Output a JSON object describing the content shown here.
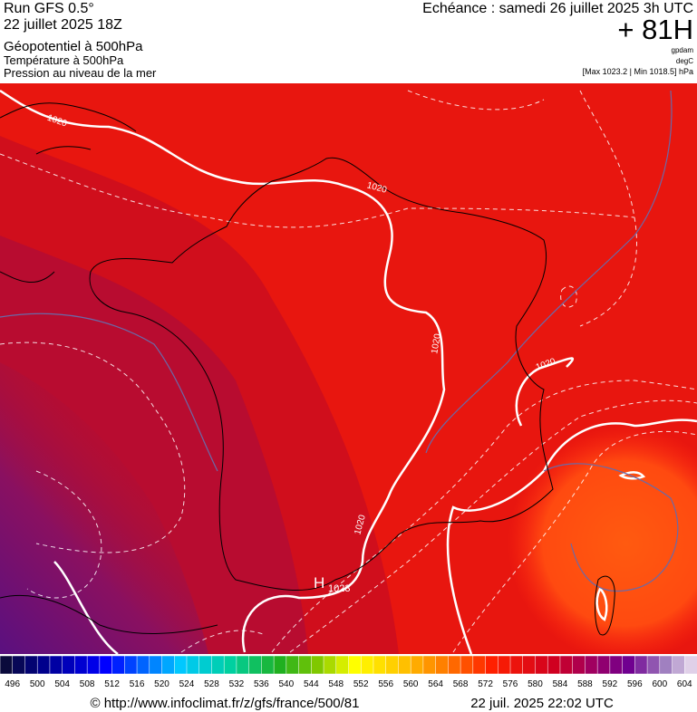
{
  "header": {
    "left": [
      "Run GFS 0.5°",
      "22 juillet 2025 18Z"
    ],
    "left_sub": "Géopotentiel à 500hPa",
    "left_lines": [
      "Température à 500hPa",
      "Pression au niveau de la mer"
    ],
    "right_title": "Echéance : samedi 26 juillet 2025 3h UTC",
    "right_big": "+ 81H",
    "units": [
      "gpdam",
      "degC",
      "[Max 1023.2 | Min 1018.5] hPa"
    ]
  },
  "map": {
    "isobar_labels": [
      "1020",
      "1020",
      "1020",
      "1020",
      "1020"
    ],
    "high": "H",
    "high_value": "1023"
  },
  "colorbar": {
    "labels": [
      496,
      500,
      504,
      508,
      512,
      516,
      520,
      524,
      528,
      532,
      536,
      540,
      544,
      548,
      552,
      556,
      560,
      564,
      568,
      572,
      576,
      580,
      584,
      588,
      592,
      596,
      600,
      604
    ]
  },
  "footer": {
    "url": "© http://www.infoclimat.fr/z/gfs/france/500/81",
    "date": "22 juil. 2025 22:02 UTC"
  }
}
